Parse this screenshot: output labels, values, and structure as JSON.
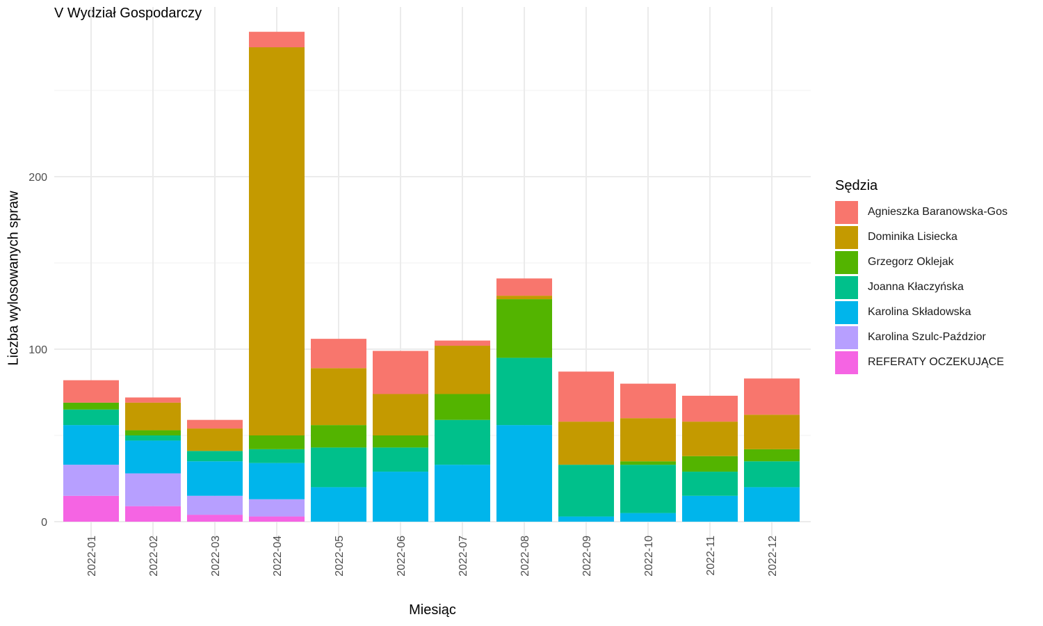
{
  "chart_data": {
    "type": "bar",
    "stacked": true,
    "title": "V Wydział Gospodarczy",
    "xlabel": "Miesiąc",
    "ylabel": "Liczba wylosowanych spraw",
    "ylim": [
      0,
      285
    ],
    "yticks": [
      0,
      100,
      200
    ],
    "grid": true,
    "legend_title": "Sędzia",
    "legend_position": "right",
    "categories": [
      "2022-01",
      "2022-02",
      "2022-03",
      "2022-04",
      "2022-05",
      "2022-06",
      "2022-07",
      "2022-08",
      "2022-09",
      "2022-10",
      "2022-11",
      "2022-12"
    ],
    "series": [
      {
        "name": "REFERATY OCZEKUJĄCE",
        "color": "#F564E3",
        "values": [
          15,
          9,
          4,
          3,
          0,
          0,
          0,
          0,
          0,
          0,
          0,
          0
        ]
      },
      {
        "name": "Karolina Szulc-Paździor",
        "color": "#B79FFF",
        "values": [
          18,
          19,
          11,
          10,
          0,
          0,
          0,
          0,
          0,
          0,
          0,
          0
        ]
      },
      {
        "name": "Karolina Składowska",
        "color": "#00B5EB",
        "values": [
          23,
          19,
          20,
          21,
          20,
          29,
          33,
          56,
          3,
          5,
          15,
          20
        ]
      },
      {
        "name": "Joanna Kłaczyńska",
        "color": "#00C08B",
        "values": [
          9,
          3,
          6,
          8,
          23,
          14,
          26,
          39,
          30,
          28,
          14,
          15
        ]
      },
      {
        "name": "Grzegorz Oklejak",
        "color": "#53B400",
        "values": [
          4,
          3,
          0,
          8,
          13,
          7,
          15,
          34,
          0,
          2,
          9,
          7
        ]
      },
      {
        "name": "Dominika Lisiecka",
        "color": "#C49A00",
        "values": [
          0,
          16,
          13,
          225,
          33,
          24,
          28,
          2,
          25,
          25,
          20,
          20
        ]
      },
      {
        "name": "Agnieszka Baranowska-Gos",
        "color": "#F8766D",
        "values": [
          13,
          3,
          5,
          9,
          17,
          25,
          3,
          10,
          29,
          20,
          15,
          21
        ]
      }
    ]
  },
  "legend_order": [
    {
      "name": "Agnieszka Baranowska-Gos",
      "color": "#F8766D"
    },
    {
      "name": "Dominika Lisiecka",
      "color": "#C49A00"
    },
    {
      "name": "Grzegorz Oklejak",
      "color": "#53B400"
    },
    {
      "name": "Joanna Kłaczyńska",
      "color": "#00C08B"
    },
    {
      "name": "Karolina Składowska",
      "color": "#00B5EB"
    },
    {
      "name": "Karolina Szulc-Paździor",
      "color": "#B79FFF"
    },
    {
      "name": "REFERATY OCZEKUJĄCE",
      "color": "#F564E3"
    }
  ]
}
